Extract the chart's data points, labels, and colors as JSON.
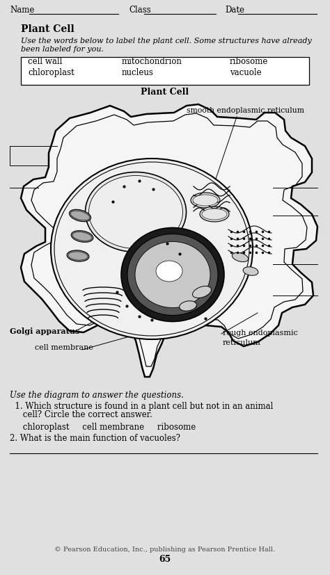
{
  "bg_color": "#e0e0e0",
  "subtitle_bold": "Plant Cell",
  "instruction_italic": "Use the words below to label the plant cell. Some structures have already\nbeen labeled for you.",
  "word_box_col1": [
    "cell wall",
    "chloroplast"
  ],
  "word_box_col2": [
    "mitochondrion",
    "nucleus"
  ],
  "word_box_col3": [
    "ribosome",
    "vacuole"
  ],
  "diagram_title": "Plant Cell",
  "smooth_er_label": "smooth endoplasmic reticulum",
  "golgi_label": "Golgi apparatus",
  "membrane_label": "cell membrane",
  "rough_er_label1": "rough endoplasmic",
  "rough_er_label2": "reticulum",
  "question_header": "Use the diagram to answer the questions.",
  "q1_line1": "  1. Which structure is found in a plant cell but not in an animal",
  "q1_line2": "     cell? Circle the correct answer.",
  "q1_choices": "     chloroplast     cell membrane     ribosome",
  "q2": "2. What is the main function of vacuoles?",
  "footer": "© Pearson Education, Inc., publishing as Pearson Prentice Hall.",
  "page_num": "65"
}
